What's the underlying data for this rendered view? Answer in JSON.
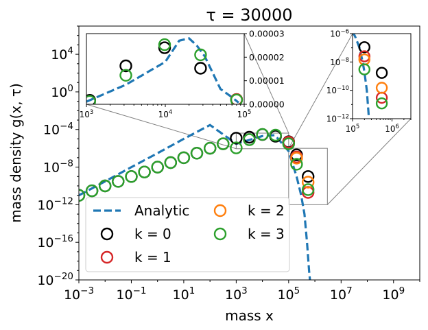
{
  "chart_data": [
    {
      "type": "scatter",
      "title": "τ = 30000",
      "xlabel": "mass x",
      "ylabel": "mass density g(x, τ)",
      "xscale": "log",
      "yscale": "log",
      "xlim": [
        0.001,
        10000000000
      ],
      "ylim": [
        1e-20,
        10000000
      ],
      "xticks": [
        0.001,
        0.1,
        10,
        1000,
        100000,
        10000000,
        1000000000
      ],
      "xtick_labels": [
        {
          "base": "10",
          "exp": "−3"
        },
        {
          "base": "10",
          "exp": "−1"
        },
        {
          "base": "10",
          "exp": "1"
        },
        {
          "base": "10",
          "exp": "3"
        },
        {
          "base": "10",
          "exp": "5"
        },
        {
          "base": "10",
          "exp": "7"
        },
        {
          "base": "10",
          "exp": "9"
        }
      ],
      "yticks": [
        1e-20,
        1e-16,
        1e-12,
        1e-08,
        0.0001,
        1,
        10000
      ],
      "ytick_labels": [
        {
          "base": "10",
          "exp": "−20"
        },
        {
          "base": "10",
          "exp": "−16"
        },
        {
          "base": "10",
          "exp": "−12"
        },
        {
          "base": "10",
          "exp": "−8"
        },
        {
          "base": "10",
          "exp": "−4"
        },
        {
          "base": "10",
          "exp": "0"
        },
        {
          "base": "10",
          "exp": "4"
        }
      ],
      "legend_position": "lower-left",
      "legend_columns": 2,
      "colors": {
        "analytic": "#1f77b4",
        "k0": "#000000",
        "k1": "#d62728",
        "k2": "#ff7f0e",
        "k3": "#2ca02c"
      },
      "series": [
        {
          "name": "Analytic",
          "kind": "line",
          "style": "dashed",
          "x": [
            0.001,
            0.01,
            0.1,
            1,
            10,
            100,
            1000,
            10000,
            30000,
            100000,
            200000,
            300000,
            400000,
            500000,
            600000,
            700000
          ],
          "y": [
            1e-11,
            3e-10,
            1e-08,
            3e-07,
            1e-05,
            0.0003,
            3e-06,
            2e-05,
            2.5e-05,
            5e-07,
            1e-09,
            1e-11,
            1e-13,
            1e-16,
            1e-19,
            1e-21
          ]
        },
        {
          "name": "k = 0",
          "kind": "markers",
          "x": [
            0.001,
            0.00316,
            0.01,
            0.0316,
            0.1,
            0.316,
            1,
            3.16,
            10,
            31.6,
            100,
            316,
            1000,
            3162,
            10000,
            31623,
            100000,
            200000,
            550000
          ],
          "y": [
            1e-11,
            3e-11,
            1e-10,
            3e-10,
            1e-09,
            3e-09,
            1e-08,
            3e-08,
            1e-07,
            3e-07,
            1e-06,
            3e-06,
            1.2e-05,
            1.5e-05,
            2.9e-05,
            1.9e-05,
            5e-06,
            2e-07,
            1e-09
          ]
        },
        {
          "name": "k = 1",
          "kind": "markers",
          "x": [
            100000,
            200000,
            550000
          ],
          "y": [
            4.5e-06,
            1.2e-07,
            2e-11
          ]
        },
        {
          "name": "k = 2",
          "kind": "markers",
          "x": [
            200000,
            550000
          ],
          "y": [
            9e-08,
            2.5e-10
          ]
        },
        {
          "name": "k = 3",
          "kind": "markers",
          "x": [
            0.001,
            0.00316,
            0.01,
            0.0316,
            0.1,
            0.316,
            1,
            3.16,
            10,
            31.6,
            100,
            316,
            1000,
            3162,
            10000,
            31623,
            100000,
            200000,
            550000
          ],
          "y": [
            1e-11,
            3e-11,
            1e-10,
            3e-10,
            1e-09,
            3e-09,
            1e-08,
            3e-08,
            1e-07,
            3e-07,
            1e-06,
            3e-06,
            1.1e-06,
            8.3e-06,
            3e-05,
            2.5e-05,
            3e-06,
            2e-08,
            4e-11
          ]
        }
      ]
    },
    {
      "type": "scatter",
      "inset": "left",
      "xscale": "log",
      "yscale": "linear",
      "xlim": [
        1000,
        100000
      ],
      "ylim": [
        0,
        3e-05
      ],
      "xticks": [
        1000,
        10000,
        100000
      ],
      "xtick_labels": [
        {
          "base": "10",
          "exp": "3"
        },
        {
          "base": "10",
          "exp": "4"
        },
        {
          "base": "10",
          "exp": "5"
        }
      ],
      "yticks": [
        0,
        1e-05,
        2e-05,
        3e-05
      ],
      "ytick_labels": [
        "0.00000",
        "0.00001",
        "0.00002",
        "0.00003"
      ],
      "series": [
        {
          "name": "Analytic",
          "kind": "line",
          "style": "dashed",
          "x": [
            1000,
            3162,
            10000,
            15000,
            20000,
            25000,
            31623,
            50000,
            70000,
            85000
          ],
          "y": [
            1.1e-06,
            8.3e-06,
            1.8e-05,
            2.7e-05,
            2.8e-05,
            2.5e-05,
            2.04e-05,
            6.5e-06,
            3e-06,
            7e-07
          ]
        },
        {
          "name": "k = 0",
          "kind": "markers",
          "x": [
            1100,
            3162,
            9800,
            28000,
            80000
          ],
          "y": [
            1.7e-06,
            1.63e-05,
            2.4e-05,
            1.53e-05,
            2e-06
          ]
        },
        {
          "name": "k = 1",
          "kind": "markers",
          "x": [
            80000
          ],
          "y": [
            2e-06
          ]
        },
        {
          "name": "k = 3",
          "kind": "markers",
          "x": [
            1100,
            3162,
            9800,
            28000,
            80000
          ],
          "y": [
            1.2e-06,
            1.23e-05,
            2.53e-05,
            2.1e-05,
            1.8e-06
          ]
        }
      ]
    },
    {
      "type": "scatter",
      "inset": "right",
      "xscale": "log",
      "yscale": "log",
      "xlim": [
        100000,
        3000000
      ],
      "ylim": [
        1e-12,
        1e-06
      ],
      "xticks": [
        100000,
        1000000
      ],
      "xtick_labels": [
        {
          "base": "10",
          "exp": "5"
        },
        {
          "base": "10",
          "exp": "6"
        }
      ],
      "yticks": [
        1e-12,
        1e-10,
        1e-08,
        1e-06
      ],
      "ytick_labels": [
        {
          "base": "10",
          "exp": "−12"
        },
        {
          "base": "10",
          "exp": "−10"
        },
        {
          "base": "10",
          "exp": "−8"
        },
        {
          "base": "10",
          "exp": "−6"
        }
      ],
      "series": [
        {
          "name": "Analytic",
          "kind": "line",
          "style": "dashed",
          "x": [
            100000,
            120000,
            150000,
            180000,
            200000,
            230000,
            260000
          ],
          "y": [
            1.5e-06,
            5e-07,
            1e-07,
            1e-08,
            2e-09,
            1e-10,
            1e-12
          ]
        },
        {
          "name": "k = 0",
          "kind": "markers",
          "x": [
            200000,
            550000
          ],
          "y": [
            1.1e-07,
            1.7e-09
          ]
        },
        {
          "name": "k = 1",
          "kind": "markers",
          "x": [
            200000,
            550000
          ],
          "y": [
            2.5e-08,
            3e-11
          ]
        },
        {
          "name": "k = 2",
          "kind": "markers",
          "x": [
            200000,
            550000
          ],
          "y": [
            1.5e-08,
            1.5e-10
          ]
        },
        {
          "name": "k = 3",
          "kind": "markers",
          "x": [
            200000,
            550000
          ],
          "y": [
            3e-09,
            1.2e-11
          ]
        }
      ]
    }
  ]
}
